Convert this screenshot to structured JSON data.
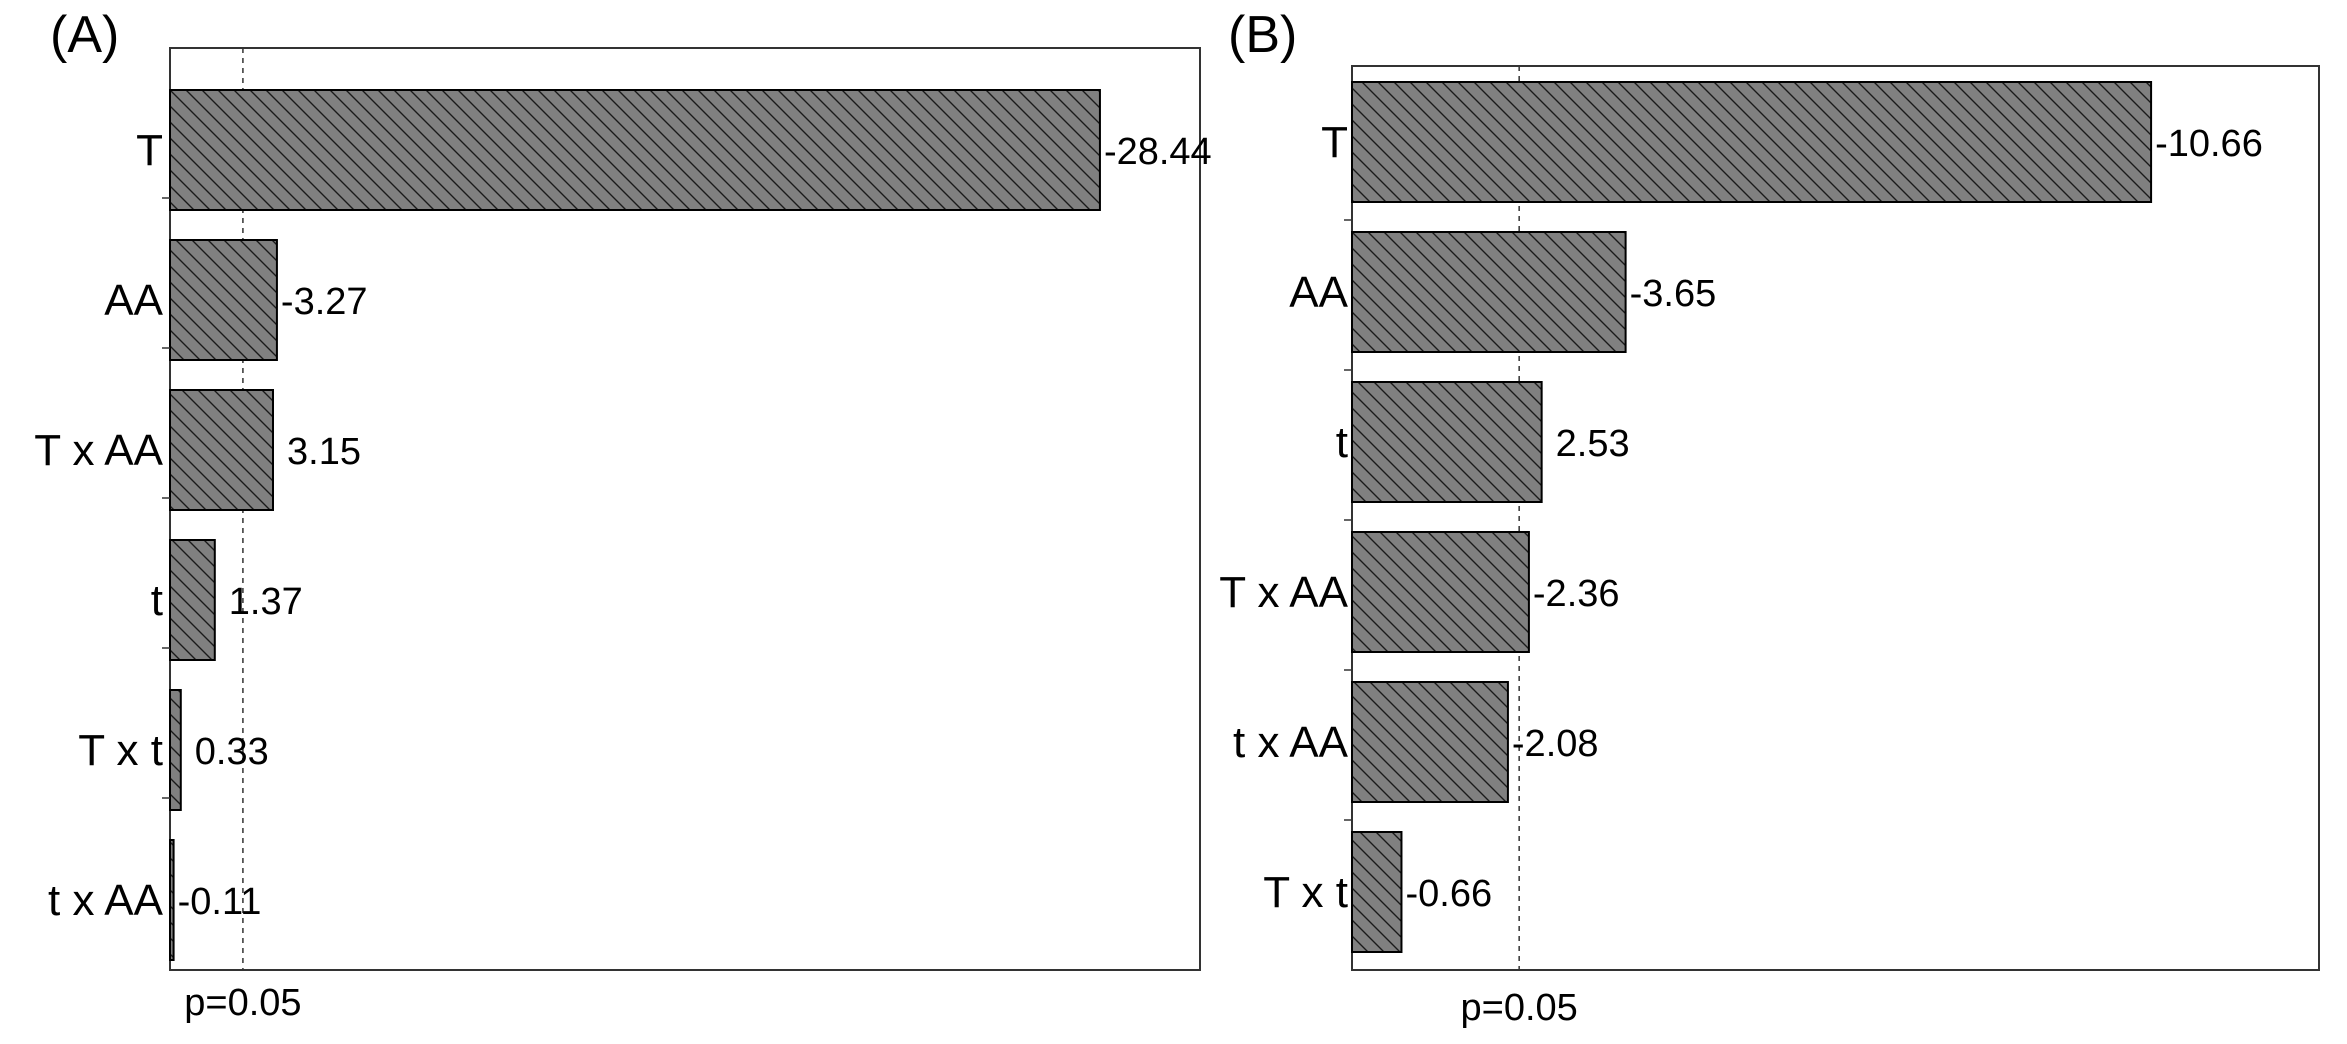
{
  "chart_data": [
    {
      "type": "bar",
      "orientation": "horizontal",
      "panel_label": "(A)",
      "categories": [
        "T",
        "AA",
        "T x AA",
        "t",
        "T x t",
        "t x AA"
      ],
      "values": [
        -28.44,
        -3.27,
        3.15,
        1.37,
        0.33,
        -0.11
      ],
      "value_labels": [
        "-28.44",
        "-3.27",
        "3.15",
        "1.37",
        "0.33",
        "-0.11"
      ],
      "xlim": [
        0,
        31.5
      ],
      "reference_value": 2.23,
      "reference_label": "p=0.05",
      "bar_magnitude": "absolute",
      "bar_fill": "#808080",
      "hatch": "diagonal"
    },
    {
      "type": "bar",
      "orientation": "horizontal",
      "panel_label": "(B)",
      "categories": [
        "T",
        "AA",
        "t",
        "T x AA",
        "t x AA",
        "T x t"
      ],
      "values": [
        -10.66,
        -3.65,
        2.53,
        -2.36,
        -2.08,
        -0.66
      ],
      "value_labels": [
        "-10.66",
        "-3.65",
        "2.53",
        "-2.36",
        "-2.08",
        "-0.66"
      ],
      "xlim": [
        0,
        12.9
      ],
      "reference_value": 2.23,
      "reference_label": "p=0.05",
      "bar_magnitude": "absolute",
      "bar_fill": "#808080",
      "hatch": "diagonal"
    }
  ]
}
